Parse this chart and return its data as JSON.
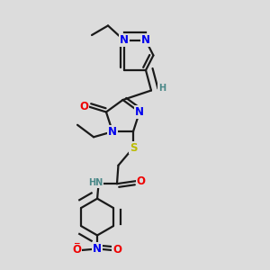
{
  "bg_color": "#dcdcdc",
  "bond_color": "#1a1a1a",
  "bond_width": 1.6,
  "dbo": 0.013,
  "atom_colors": {
    "N": "#0000ee",
    "O": "#ee0000",
    "S": "#bbbb00",
    "H": "#4a8888",
    "C": "#1a1a1a"
  },
  "fs": 8.5,
  "fs_s": 7.0
}
